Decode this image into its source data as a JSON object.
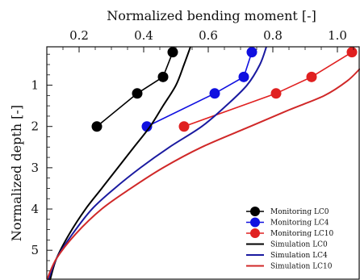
{
  "chart_data": {
    "type": "line",
    "xlabel": "Normalized bending moment [-]",
    "ylabel": "Normalized depth [-]",
    "xlim": [
      0.1,
      1.07
    ],
    "ylim": [
      5.72,
      0.07
    ],
    "x_ticks": [
      0.2,
      0.4,
      0.6,
      0.8,
      1.0
    ],
    "x_tick_labels": [
      "0.2",
      "0.4",
      "0.6",
      "0.8",
      "1.0"
    ],
    "y_ticks": [
      1,
      2,
      3,
      4,
      5
    ],
    "y_tick_labels": [
      "1",
      "2",
      "3",
      "4",
      "5"
    ],
    "x_axis_position": "top",
    "y_axis_inverted": true,
    "grid": false,
    "legend_position": "bottom-right",
    "series": [
      {
        "name": "Monitoring LC0",
        "kind": "marker-line",
        "color": "#000000",
        "x": [
          0.49,
          0.46,
          0.38,
          0.255
        ],
        "y": [
          0.2,
          0.8,
          1.2,
          2.0
        ]
      },
      {
        "name": "Monitoring LC4",
        "kind": "marker-line",
        "color": "#1010e0",
        "x": [
          0.735,
          0.71,
          0.62,
          0.41
        ],
        "y": [
          0.2,
          0.8,
          1.2,
          2.0
        ]
      },
      {
        "name": "Monitoring LC10",
        "kind": "marker-line",
        "color": "#e02020",
        "x": [
          1.045,
          0.92,
          0.81,
          0.525
        ],
        "y": [
          0.2,
          0.8,
          1.2,
          2.0
        ]
      },
      {
        "name": "Simulation LC0",
        "kind": "line",
        "color": "#000000",
        "x": [
          0.545,
          0.525,
          0.5,
          0.46,
          0.42,
          0.37,
          0.32,
          0.27,
          0.22,
          0.17,
          0.13,
          0.11
        ],
        "y": [
          0.07,
          0.5,
          1.0,
          1.5,
          2.0,
          2.5,
          3.0,
          3.5,
          4.0,
          4.6,
          5.2,
          5.72
        ]
      },
      {
        "name": "Simulation LC4",
        "kind": "line",
        "color": "#1a1aa0",
        "x": [
          0.78,
          0.76,
          0.72,
          0.655,
          0.58,
          0.48,
          0.39,
          0.31,
          0.24,
          0.18,
          0.13,
          0.105
        ],
        "y": [
          0.07,
          0.5,
          1.0,
          1.5,
          2.0,
          2.5,
          3.0,
          3.5,
          4.0,
          4.6,
          5.2,
          5.72
        ]
      },
      {
        "name": "Simulation LC10",
        "kind": "line",
        "color": "#d02828",
        "x": [
          1.07,
          1.03,
          0.96,
          0.85,
          0.73,
          0.58,
          0.46,
          0.36,
          0.27,
          0.19,
          0.13,
          0.1
        ],
        "y": [
          0.6,
          0.9,
          1.25,
          1.6,
          2.0,
          2.5,
          3.0,
          3.5,
          4.0,
          4.6,
          5.2,
          5.72
        ]
      }
    ]
  }
}
